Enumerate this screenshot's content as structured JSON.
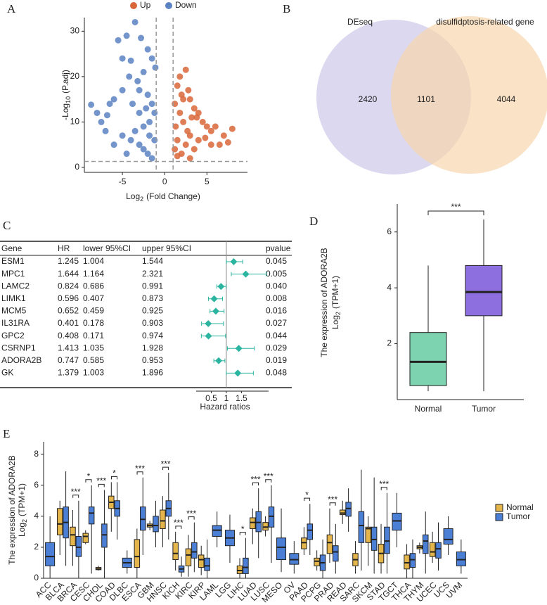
{
  "chart_data": [
    {
      "type": "scatter",
      "panel": "A",
      "series": [
        {
          "name": "Up",
          "color": "#d9663a",
          "x": [
            1.2,
            1.5,
            1.8,
            2,
            2.2,
            2.5,
            2.8,
            3,
            3.2,
            3.5,
            3.8,
            4,
            4.5,
            5,
            5.5,
            6,
            7,
            7.5,
            8,
            6.5,
            1.2,
            1.5,
            2,
            2.5,
            3,
            3.5,
            4,
            1.3,
            2.2,
            1.8,
            2.7,
            4.8,
            5.5,
            3,
            1.5
          ],
          "y": [
            14,
            18,
            20,
            16,
            15,
            21.5,
            17,
            15,
            11,
            13,
            11,
            12,
            10,
            9,
            8,
            9,
            7,
            5.5,
            8.5,
            5,
            4,
            6,
            3,
            5,
            7,
            4,
            6,
            9,
            10,
            12,
            8,
            6.5,
            5,
            2,
            2.5
          ]
        },
        {
          "name": "Down",
          "color": "#5b82c2",
          "x": [
            -8.7,
            -8,
            -7.5,
            -7,
            -6.8,
            -6.5,
            -6,
            -5.5,
            -5,
            -5,
            -4.5,
            -4.2,
            -4,
            -3.8,
            -3.5,
            -3.2,
            -3,
            -3,
            -2.8,
            -2.5,
            -2.2,
            -2,
            -2,
            -1.8,
            -1.5,
            -1.5,
            -1.2,
            -1.1,
            -4,
            -3,
            -2.5,
            -2,
            -1.5,
            -1.2,
            -5,
            -6,
            -3.5,
            -2.5,
            -1.8,
            -4.5
          ],
          "y": [
            13.8,
            12,
            10,
            8,
            11.5,
            14,
            15,
            28,
            17,
            24,
            29,
            20,
            23.5,
            14,
            32,
            19,
            17,
            12,
            28.5,
            21,
            13,
            16,
            26,
            10,
            24,
            14,
            12,
            22,
            6,
            5,
            4,
            3,
            2,
            6,
            7,
            5,
            8,
            9,
            7,
            3
          ]
        }
      ],
      "x_label": [
        "Log",
        "2",
        "(Fold Change)"
      ],
      "y_label": [
        "-Log",
        "10",
        "(P.adj)"
      ],
      "xlim": [
        -9.5,
        9.8
      ],
      "ylim": [
        -1.1,
        33
      ],
      "xticks": [
        -5,
        0,
        5
      ],
      "yticks": [
        0,
        10,
        20,
        30
      ],
      "vlines": [
        -1,
        1
      ],
      "hline": 1.3
    },
    {
      "type": "venn",
      "panel": "B",
      "sets": [
        {
          "name": "DEseq",
          "color": "#cdc7ea",
          "text_color": "#9a8fd6"
        },
        {
          "name": "disulfidptosis-related gene",
          "color": "#f6d6ac",
          "text_color": "#e09a45"
        }
      ],
      "values": [
        2420,
        1101,
        4044
      ]
    },
    {
      "type": "forest",
      "panel": "C",
      "columns": [
        "Gene",
        "HR",
        "lower 95%CI",
        "upper 95%CI",
        "pvalue"
      ],
      "genes": [
        "ESM1",
        "MPC1",
        "LAMC2",
        "LIMK1",
        "MCM5",
        "IL31RA",
        "GPC2",
        "CSRNP1",
        "ADORA2B",
        "GK"
      ],
      "hr": [
        1.245,
        1.644,
        0.824,
        0.596,
        0.652,
        0.401,
        0.408,
        1.413,
        0.747,
        1.379
      ],
      "lower": [
        1.004,
        1.164,
        0.686,
        0.407,
        0.459,
        0.178,
        0.171,
        1.035,
        0.585,
        1.003
      ],
      "upper": [
        1.544,
        2.321,
        0.991,
        0.873,
        0.925,
        0.903,
        0.974,
        1.928,
        0.953,
        1.896
      ],
      "pvalue": [
        "0.045",
        "0.005",
        "0.040",
        "0.008",
        "0.016",
        "0.027",
        "0.044",
        "0.029",
        "0.019",
        "0.048"
      ],
      "color": "#2bb5a0",
      "xlim": [
        0,
        2.4
      ],
      "xticks": [
        0.5,
        1,
        1.5
      ],
      "ref": 1,
      "x_label": "Hazard ratios"
    },
    {
      "type": "box",
      "panel": "D",
      "categories": [
        "Normal",
        "Tumor"
      ],
      "colors": [
        "#7dd3b0",
        "#8e6fe0"
      ],
      "boxes": [
        [
          0.3,
          0.5,
          1.35,
          2.4,
          4.8
        ],
        [
          0.3,
          3.0,
          3.85,
          4.8,
          6.45
        ]
      ],
      "ylim": [
        0,
        7
      ],
      "yticks": [
        2,
        4,
        6
      ],
      "significance": "***",
      "y_label": [
        "The expression of ADORA2B",
        "Log",
        "2",
        "(TPM+1)"
      ]
    },
    {
      "type": "grouped-box",
      "panel": "E",
      "categories": [
        "ACC",
        "BLCA",
        "BRCA",
        "CESC",
        "CHOL",
        "COAD",
        "DLBC",
        "ESCA",
        "GBM",
        "HNSC",
        "KICH",
        "KIRC",
        "KIRP",
        "LAML",
        "LGG",
        "LIHC",
        "LUAD",
        "LUSC",
        "MESO",
        "OV",
        "PAAD",
        "PCPG",
        "PRAD",
        "READ",
        "SARC",
        "SKCM",
        "STAD",
        "TGCT",
        "THCA",
        "THYM",
        "UCEC",
        "UCS",
        "UVM"
      ],
      "series": [
        {
          "name": "Normal",
          "color": "#e3b54a",
          "boxes": [
            null,
            [
              1.5,
              2.8,
              3.5,
              4.5,
              5.0
            ],
            [
              0.8,
              2.1,
              2.8,
              3.3,
              4.4
            ],
            [
              2.2,
              2.3,
              2.7,
              2.9,
              3.1
            ],
            [
              0.5,
              0.55,
              0.6,
              0.7,
              0.8
            ],
            [
              3.0,
              4.5,
              4.9,
              5.3,
              6.2
            ],
            null,
            [
              0,
              0.7,
              1.4,
              2.5,
              3.2
            ],
            [
              3.1,
              3.3,
              3.4,
              3.5,
              3.7
            ],
            [
              2.0,
              3.2,
              3.7,
              4.4,
              5.3
            ],
            [
              0.5,
              1.2,
              1.6,
              2.3,
              3.0
            ],
            [
              0.1,
              0.8,
              1.5,
              1.9,
              2.8
            ],
            [
              0.2,
              0.7,
              1.2,
              1.5,
              2.1
            ],
            null,
            null,
            [
              0,
              0.3,
              0.5,
              0.8,
              1.3
            ],
            [
              2.2,
              3.2,
              3.6,
              3.9,
              4.5
            ],
            [
              2.7,
              3.1,
              3.3,
              3.6,
              4.0
            ],
            null,
            null,
            [
              1.5,
              1.9,
              2.3,
              2.6,
              3.3
            ],
            [
              0.5,
              0.8,
              1.1,
              1.3,
              1.8
            ],
            [
              1.0,
              1.6,
              2.3,
              2.8,
              4.5
            ],
            [
              3.5,
              4.1,
              4.2,
              4.4,
              5.0
            ],
            [
              0.3,
              0.8,
              1.2,
              1.6,
              2.4
            ],
            [
              0.8,
              2.3,
              3.2,
              3.3,
              4.0
            ],
            [
              0.3,
              1.0,
              1.6,
              2.2,
              3.5
            ],
            null,
            [
              0,
              0.6,
              1.0,
              1.5,
              2.2
            ],
            [
              1.6,
              1.9,
              2.0,
              2.1,
              2.3
            ],
            [
              1.0,
              1.4,
              1.7,
              2.3,
              3.0
            ],
            null,
            null
          ]
        },
        {
          "name": "Tumor",
          "color": "#4b7fd6",
          "boxes": [
            [
              0,
              0.8,
              1.4,
              2.3,
              4.0
            ],
            [
              0.8,
              2.6,
              3.6,
              4.6,
              6.9
            ],
            [
              0,
              1.4,
              2.0,
              2.7,
              5.0
            ],
            [
              0.3,
              3.5,
              4.2,
              4.6,
              6.0
            ],
            [
              0,
              2.0,
              2.8,
              3.5,
              5.7
            ],
            [
              2.5,
              4.0,
              4.5,
              5.0,
              6.2
            ],
            [
              0.3,
              0.7,
              1.0,
              1.3,
              1.8
            ],
            [
              1.5,
              3.1,
              3.8,
              4.6,
              6.5
            ],
            [
              2.0,
              3.0,
              3.4,
              4.0,
              5.0
            ],
            [
              2.5,
              4.0,
              4.5,
              5.0,
              6.8
            ],
            [
              0.1,
              0.4,
              0.6,
              0.8,
              1.4
            ],
            [
              0.4,
              1.3,
              1.7,
              2.3,
              3.6
            ],
            [
              0,
              0.5,
              0.8,
              1.3,
              2.5
            ],
            [
              2.0,
              2.7,
              3.1,
              3.4,
              4.3
            ],
            [
              1.0,
              2.1,
              2.6,
              3.1,
              4.1
            ],
            [
              0,
              0.3,
              0.7,
              1.3,
              2.6
            ],
            [
              1.3,
              3.0,
              3.6,
              4.3,
              5.8
            ],
            [
              1.0,
              3.3,
              4.0,
              4.6,
              6.0
            ],
            [
              0.4,
              1.2,
              2.0,
              2.6,
              4.5
            ],
            [
              0.3,
              0.9,
              1.2,
              1.6,
              2.4
            ],
            [
              1.5,
              2.5,
              3.1,
              3.5,
              4.8
            ],
            [
              0,
              0.5,
              1.0,
              1.5,
              2.5
            ],
            [
              0.3,
              1.1,
              1.7,
              2.1,
              3.5
            ],
            [
              3.0,
              4.0,
              4.5,
              4.9,
              5.8
            ],
            [
              0.5,
              2.3,
              3.4,
              4.3,
              7.0
            ],
            [
              0.3,
              1.8,
              2.5,
              3.3,
              6.5
            ],
            [
              0.3,
              1.6,
              2.4,
              3.3,
              5.5
            ],
            [
              2.0,
              3.1,
              3.7,
              4.2,
              5.5
            ],
            [
              0,
              0.7,
              1.2,
              1.6,
              2.5
            ],
            [
              0.3,
              1.6,
              2.4,
              2.8,
              4.3
            ],
            [
              0.5,
              1.3,
              1.9,
              2.3,
              3.6
            ],
            [
              1.5,
              2.2,
              2.5,
              3.2,
              4.0
            ],
            [
              0.3,
              0.8,
              1.2,
              1.7,
              2.5
            ]
          ]
        }
      ],
      "significance": [
        null,
        null,
        "***",
        "*",
        "***",
        "*",
        null,
        "***",
        null,
        "***",
        "***",
        "***",
        null,
        null,
        null,
        "*",
        "***",
        "***",
        null,
        null,
        "*",
        null,
        "***",
        null,
        null,
        null,
        "***",
        null,
        null,
        null,
        null,
        null,
        null
      ],
      "ylim": [
        0,
        8.8
      ],
      "yticks": [
        0,
        2,
        4,
        6,
        8
      ],
      "y_label": [
        "The expression of ADORA2B",
        "Log",
        "2",
        "(TPM+1)"
      ]
    }
  ]
}
